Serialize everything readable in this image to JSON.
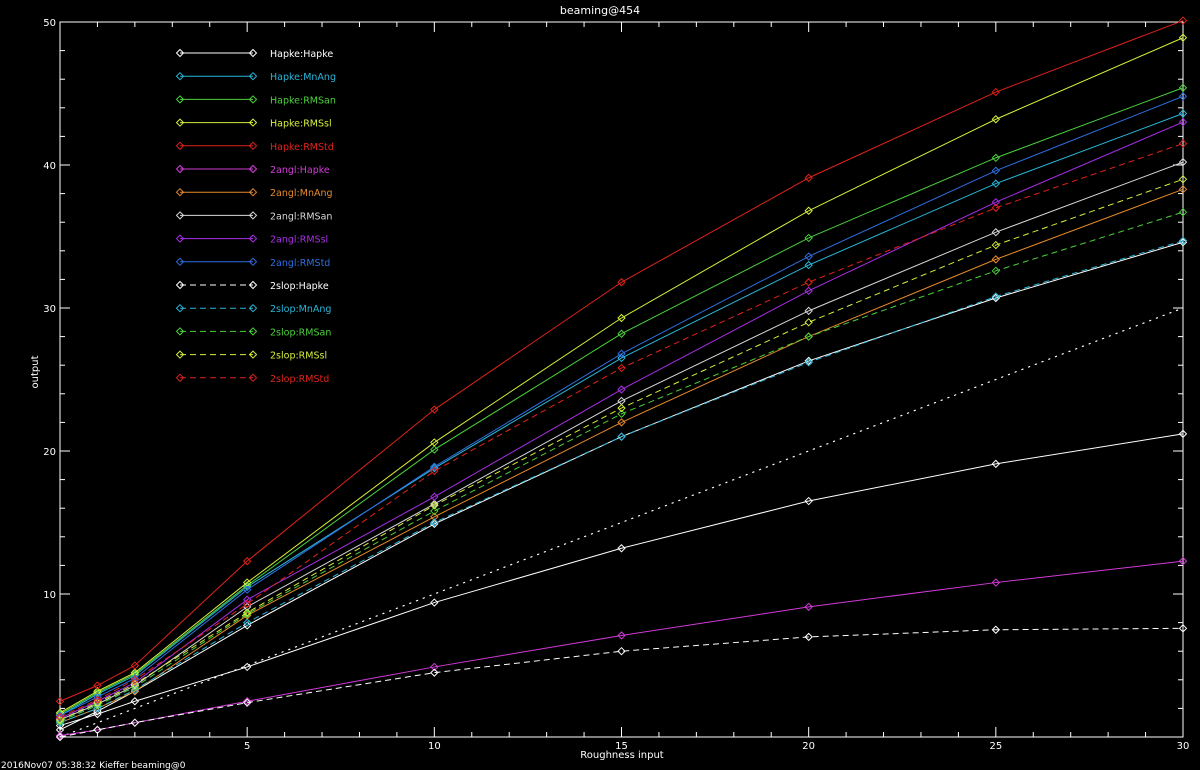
{
  "footer": "2016Nov07 05:38:32 Kieffer beaming@0",
  "colors": {
    "white": "#ffffff",
    "cyan": "#29b6d9",
    "green": "#4ad13a",
    "yellow": "#d7ef3a",
    "red": "#e0231c",
    "magenta": "#d23bd8",
    "orange": "#e48a2c",
    "lightgray": "#d8d8d8",
    "purple": "#a92ee6",
    "blue": "#2f6fe0"
  },
  "chart_data": {
    "type": "line",
    "title": "beaming@454",
    "xlabel": "Roughness input",
    "ylabel": "output",
    "xlim": [
      0,
      30
    ],
    "ylim": [
      0,
      50
    ],
    "xticks": [
      5,
      10,
      15,
      20,
      25,
      30
    ],
    "yticks": [
      10,
      20,
      30,
      40,
      50
    ],
    "grid": false,
    "legend_position": "top-left",
    "x": [
      0,
      1,
      2,
      5,
      10,
      15,
      20,
      25,
      30
    ],
    "series": [
      {
        "name": "Hapke:Hapke",
        "color": "white",
        "dash": false,
        "values": [
          0.5,
          1.8,
          3.2,
          7.8,
          14.9,
          21.0,
          26.3,
          30.7,
          34.6
        ]
      },
      {
        "name": "Hapke:MnAng",
        "color": "cyan",
        "dash": false,
        "values": [
          1.5,
          3.0,
          4.3,
          10.5,
          18.8,
          26.5,
          33.0,
          38.7,
          43.6
        ]
      },
      {
        "name": "Hapke:RMSan",
        "color": "green",
        "dash": false,
        "values": [
          1.6,
          3.1,
          4.4,
          10.6,
          20.1,
          28.2,
          34.9,
          40.5,
          45.4
        ]
      },
      {
        "name": "Hapke:RMSsl",
        "color": "yellow",
        "dash": false,
        "values": [
          1.7,
          3.2,
          4.5,
          10.8,
          20.6,
          29.3,
          36.8,
          43.2,
          48.9
        ]
      },
      {
        "name": "Hapke:RMStd",
        "color": "red",
        "dash": false,
        "values": [
          2.5,
          3.6,
          5.0,
          12.3,
          22.9,
          31.8,
          39.1,
          45.1,
          50.1
        ]
      },
      {
        "name": "2angl:Hapke",
        "color": "magenta",
        "dash": false,
        "values": [
          0.1,
          0.5,
          1.0,
          2.5,
          4.9,
          7.1,
          9.1,
          10.8,
          12.3
        ]
      },
      {
        "name": "2angl:MnAng",
        "color": "orange",
        "dash": false,
        "values": [
          1.0,
          2.0,
          3.2,
          8.5,
          15.4,
          22.0,
          28.0,
          33.4,
          38.3
        ]
      },
      {
        "name": "2angl:RMSan",
        "color": "lightgray",
        "dash": false,
        "values": [
          1.2,
          2.3,
          3.6,
          9.1,
          16.3,
          23.5,
          29.8,
          35.3,
          40.2
        ]
      },
      {
        "name": "2angl:RMSsl",
        "color": "purple",
        "dash": false,
        "values": [
          1.3,
          2.5,
          3.8,
          9.6,
          16.8,
          24.3,
          31.2,
          37.4,
          43.0
        ]
      },
      {
        "name": "2angl:RMStd",
        "color": "blue",
        "dash": false,
        "values": [
          1.5,
          2.8,
          4.1,
          10.3,
          18.9,
          26.8,
          33.6,
          39.6,
          44.8
        ]
      },
      {
        "name": "2slop:Hapke",
        "color": "white",
        "dash": true,
        "values": [
          0.0,
          0.5,
          1.0,
          2.4,
          4.5,
          6.0,
          7.0,
          7.5,
          7.6
        ]
      },
      {
        "name": "2slop:MnAng",
        "color": "cyan",
        "dash": true,
        "values": [
          1.0,
          2.0,
          3.3,
          8.0,
          15.0,
          21.0,
          26.2,
          30.8,
          34.7
        ]
      },
      {
        "name": "2slop:RMSan",
        "color": "green",
        "dash": true,
        "values": [
          1.1,
          2.2,
          3.5,
          8.6,
          15.8,
          22.6,
          28.0,
          32.6,
          36.7
        ]
      },
      {
        "name": "2slop:RMSsl",
        "color": "yellow",
        "dash": true,
        "values": [
          1.2,
          2.4,
          3.7,
          8.7,
          16.2,
          23.0,
          29.0,
          34.4,
          39.0
        ]
      },
      {
        "name": "2slop:RMStd",
        "color": "red",
        "dash": true,
        "values": [
          1.4,
          2.6,
          4.0,
          9.3,
          18.6,
          25.8,
          31.8,
          37.0,
          41.5
        ]
      }
    ],
    "reference_line": {
      "style": "dotted",
      "color": "white",
      "x": [
        0,
        30
      ],
      "values": [
        0,
        30
      ]
    },
    "extra_line": {
      "color": "white",
      "dash": false,
      "x": [
        0,
        1,
        2,
        5,
        10,
        15,
        20,
        25,
        30
      ],
      "values": [
        0.8,
        1.6,
        2.5,
        4.9,
        9.4,
        13.2,
        16.5,
        19.1,
        21.2
      ]
    }
  }
}
